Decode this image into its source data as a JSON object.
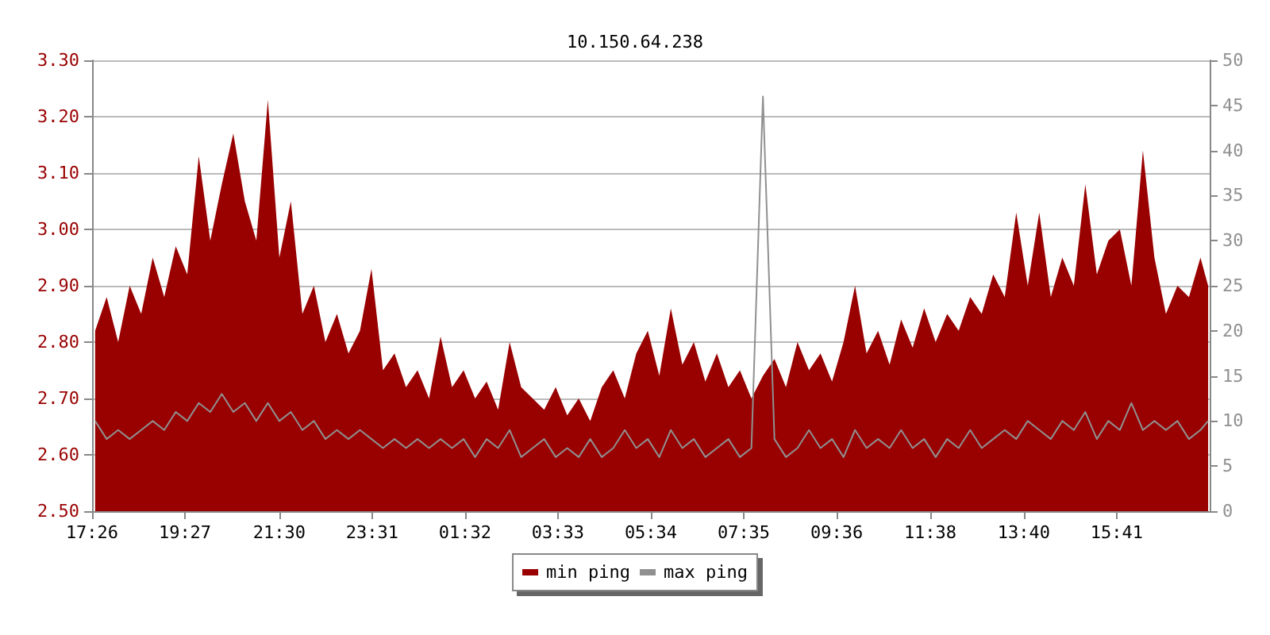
{
  "chart_data": {
    "type": "area",
    "title": "10.150.64.238",
    "x": [
      "--01-01T17:30",
      "--01-01T17:45",
      "--01-01T18:00",
      "--01-01T18:15",
      "--01-01T18:30",
      "--01-01T18:45",
      "--01-01T19:00",
      "--01-01T19:15",
      "--01-01T19:30",
      "--01-01T19:45",
      "--01-01T20:00",
      "--01-01T20:15",
      "--01-01T20:30",
      "--01-01T20:45",
      "--01-01T21:00",
      "--01-01T21:15",
      "--01-01T21:30",
      "--01-01T21:45",
      "--01-01T22:00",
      "--01-01T22:15",
      "--01-01T22:30",
      "--01-01T22:45",
      "--01-01T23:00",
      "--01-01T23:15",
      "--01-01T23:30",
      "--01-01T23:45",
      "--01-02T00:00",
      "--01-02T00:15",
      "--01-02T00:30",
      "--01-02T00:45",
      "--01-02T01:00",
      "--01-02T01:15",
      "--01-02T01:30",
      "--01-02T01:45",
      "--01-02T02:00",
      "--01-02T02:15",
      "--01-02T02:30",
      "--01-02T02:45",
      "--01-02T03:00",
      "--01-02T03:15",
      "--01-02T03:30",
      "--01-02T03:45",
      "--01-02T04:00",
      "--01-02T04:15",
      "--01-02T04:30",
      "--01-02T04:45",
      "--01-02T05:00",
      "--01-02T05:15",
      "--01-02T05:30",
      "--01-02T05:45",
      "--01-02T06:00",
      "--01-02T06:15",
      "--01-02T06:30",
      "--01-02T06:45",
      "--01-02T07:00",
      "--01-02T07:15",
      "--01-02T07:30",
      "--01-02T07:45",
      "--01-02T08:00",
      "--01-02T08:15",
      "--01-02T08:30",
      "--01-02T08:45",
      "--01-02T09:00",
      "--01-02T09:15",
      "--01-02T09:30",
      "--01-02T09:45",
      "--01-02T10:00",
      "--01-02T10:15",
      "--01-02T10:30",
      "--01-02T10:45",
      "--01-02T11:00",
      "--01-02T11:15",
      "--01-02T11:30",
      "--01-02T11:45",
      "--01-02T12:00",
      "--01-02T12:15",
      "--01-02T12:30",
      "--01-02T12:45",
      "--01-02T13:00",
      "--01-02T13:15",
      "--01-02T13:30",
      "--01-02T13:45",
      "--01-02T14:00",
      "--01-02T14:15",
      "--01-02T14:30",
      "--01-02T14:45",
      "--01-02T15:00",
      "--01-02T15:15",
      "--01-02T15:30",
      "--01-02T15:45",
      "--01-02T16:00",
      "--01-02T16:15",
      "--01-02T16:30",
      "--01-02T16:45",
      "--01-02T17:00",
      "--01-02T17:15",
      "--01-02T17:30",
      "--01-02T17:40"
    ],
    "series": [
      {
        "name": "min ping",
        "color": "#990000",
        "values": [
          2.82,
          2.88,
          2.8,
          2.9,
          2.85,
          2.95,
          2.88,
          2.97,
          2.92,
          3.13,
          2.98,
          3.08,
          3.17,
          3.05,
          2.98,
          3.23,
          2.95,
          3.05,
          2.85,
          2.9,
          2.8,
          2.85,
          2.78,
          2.82,
          2.93,
          2.75,
          2.78,
          2.72,
          2.75,
          2.7,
          2.81,
          2.72,
          2.75,
          2.7,
          2.73,
          2.68,
          2.8,
          2.72,
          2.7,
          2.68,
          2.72,
          2.67,
          2.7,
          2.66,
          2.72,
          2.75,
          2.7,
          2.78,
          2.82,
          2.74,
          2.86,
          2.76,
          2.8,
          2.73,
          2.78,
          2.72,
          2.75,
          2.7,
          2.74,
          2.77,
          2.72,
          2.8,
          2.75,
          2.78,
          2.73,
          2.8,
          2.9,
          2.78,
          2.82,
          2.76,
          2.84,
          2.79,
          2.86,
          2.8,
          2.85,
          2.82,
          2.88,
          2.85,
          2.92,
          2.88,
          3.03,
          2.9,
          3.03,
          2.88,
          2.95,
          2.9,
          3.08,
          2.92,
          2.98,
          3.0,
          2.9,
          3.14,
          2.95,
          2.85,
          2.9,
          2.88,
          2.95,
          2.9
        ]
      },
      {
        "name": "max ping",
        "type": "line",
        "axis": "y2",
        "color": "#909090",
        "values": [
          10,
          8,
          9,
          8,
          9,
          10,
          9,
          11,
          10,
          12,
          11,
          13,
          11,
          12,
          10,
          12,
          10,
          11,
          9,
          10,
          8,
          9,
          8,
          9,
          8,
          7,
          8,
          7,
          8,
          7,
          8,
          7,
          8,
          6,
          8,
          7,
          9,
          6,
          7,
          8,
          6,
          7,
          6,
          8,
          6,
          7,
          9,
          7,
          8,
          6,
          9,
          7,
          8,
          6,
          7,
          8,
          6,
          7,
          46,
          8,
          6,
          7,
          9,
          7,
          8,
          6,
          9,
          7,
          8,
          7,
          9,
          7,
          8,
          6,
          8,
          7,
          9,
          7,
          8,
          9,
          8,
          10,
          9,
          8,
          10,
          9,
          11,
          8,
          10,
          9,
          12,
          9,
          10,
          9,
          10,
          8,
          9,
          10
        ]
      }
    ],
    "xlim": [
      "--01-01T17:26",
      "--01-02T17:42"
    ],
    "xticks": [
      {
        "value": "--01-01T17:26",
        "label": "17:26"
      },
      {
        "value": "--01-01T19:27",
        "label": "19:27"
      },
      {
        "value": "--01-01T21:30",
        "label": "21:30"
      },
      {
        "value": "--01-01T23:31",
        "label": "23:31"
      },
      {
        "value": "--01-02T01:32",
        "label": "01:32"
      },
      {
        "value": "--01-02T03:33",
        "label": "03:33"
      },
      {
        "value": "--01-02T05:34",
        "label": "05:34"
      },
      {
        "value": "--01-02T07:35",
        "label": "07:35"
      },
      {
        "value": "--01-02T09:36",
        "label": "09:36"
      },
      {
        "value": "--01-02T11:38",
        "label": "11:38"
      },
      {
        "value": "--01-02T13:40",
        "label": "13:40"
      },
      {
        "value": "--01-02T15:41",
        "label": "15:41"
      }
    ],
    "ylim": [
      2.5,
      3.3
    ],
    "yticks": [
      {
        "value": 2.5,
        "label": "2.50"
      },
      {
        "value": 2.6,
        "label": "2.60"
      },
      {
        "value": 2.7,
        "label": "2.70"
      },
      {
        "value": 2.8,
        "label": "2.80"
      },
      {
        "value": 2.9,
        "label": "2.90"
      },
      {
        "value": 3.0,
        "label": "3.00"
      },
      {
        "value": 3.1,
        "label": "3.10"
      },
      {
        "value": 3.2,
        "label": "3.20"
      },
      {
        "value": 3.3,
        "label": "3.30"
      }
    ],
    "y2lim": [
      0,
      50
    ],
    "y2ticks": [
      0,
      5,
      10,
      15,
      20,
      25,
      30,
      35,
      40,
      45,
      50
    ],
    "grid": "y",
    "legend": "bottom",
    "marker": "none",
    "line_style": "solid"
  }
}
